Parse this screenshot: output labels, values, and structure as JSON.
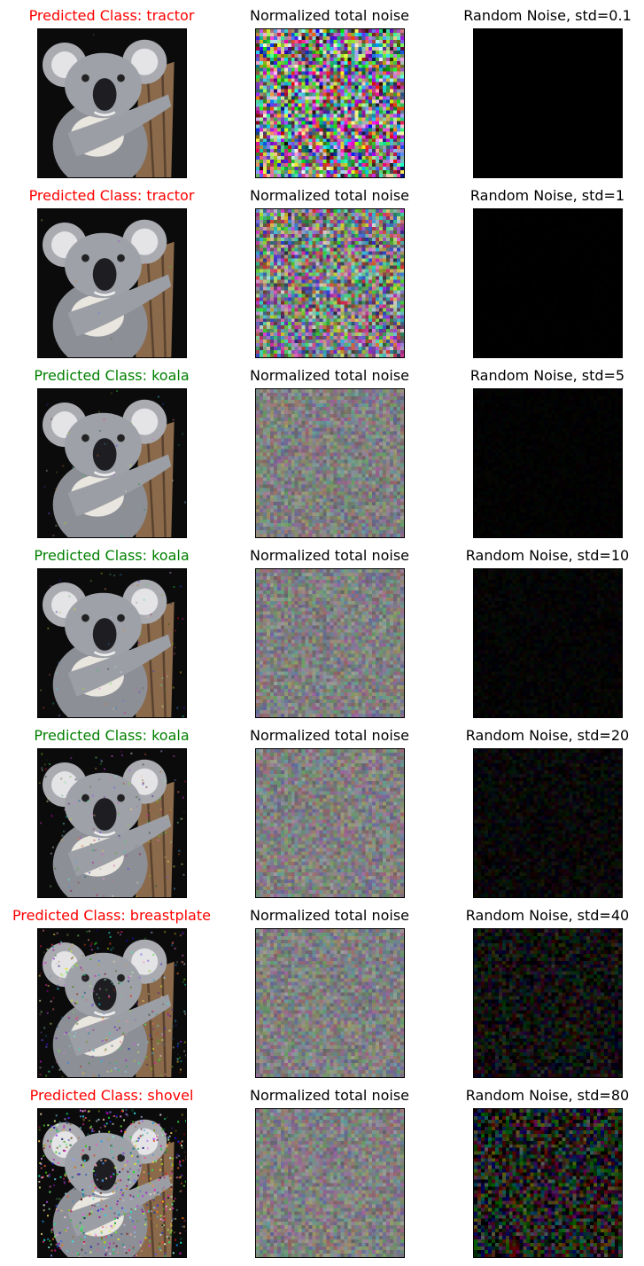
{
  "colors": {
    "correct": "#008000",
    "incorrect": "#ff0000",
    "neutral": "#000000"
  },
  "column_titles": {
    "noise": "Normalized total noise"
  },
  "rows": [
    {
      "prediction": "Predicted Class: tractor",
      "correct": false,
      "random_title": "Random Noise, std=0.1",
      "std": 0.1
    },
    {
      "prediction": "Predicted Class: tractor",
      "correct": false,
      "random_title": "Random Noise, std=1",
      "std": 1
    },
    {
      "prediction": "Predicted Class: koala",
      "correct": true,
      "random_title": "Random Noise, std=5",
      "std": 5
    },
    {
      "prediction": "Predicted Class: koala",
      "correct": true,
      "random_title": "Random Noise, std=10",
      "std": 10
    },
    {
      "prediction": "Predicted Class: koala",
      "correct": true,
      "random_title": "Random Noise, std=20",
      "std": 20
    },
    {
      "prediction": "Predicted Class: breastplate",
      "correct": false,
      "random_title": "Random Noise, std=40",
      "std": 40
    },
    {
      "prediction": "Predicted Class: shovel",
      "correct": false,
      "random_title": "Random Noise, std=80",
      "std": 80
    }
  ]
}
